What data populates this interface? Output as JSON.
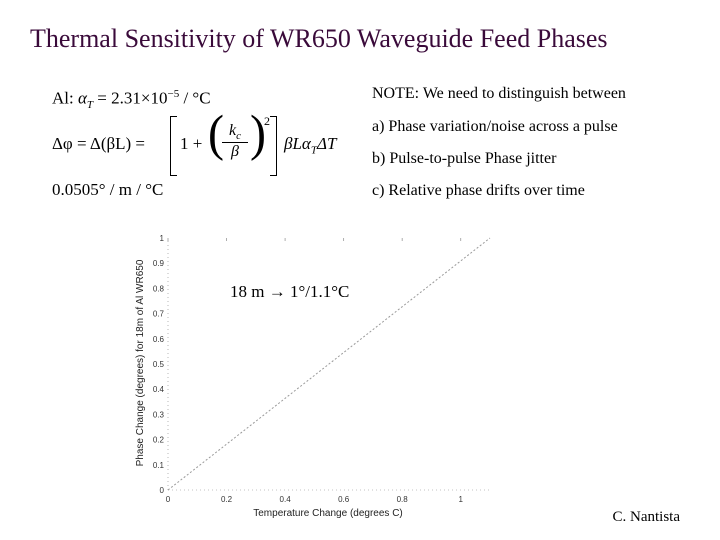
{
  "slide": {
    "title": "Thermal Sensitivity of WR650 Waveguide Feed Phases",
    "author": "C. Nantista"
  },
  "equations": {
    "alpha_label": "Al:",
    "alpha_value": "2.31×10",
    "alpha_exp": "−5",
    "alpha_unit": " / °C",
    "delta_phi_lhs": "Δφ = Δ(βL) =",
    "one_plus": "1 +",
    "kc": "k",
    "kc_sub": "c",
    "beta": "β",
    "square": "2",
    "tail": "βLα",
    "tail_sub": "T",
    "tail_end": "ΔT",
    "result": "0.0505° / m / °C"
  },
  "note": {
    "heading": "NOTE:  We need to distinguish between",
    "items": [
      "a)   Phase variation/noise across a pulse",
      "b)   Pulse-to-pulse Phase jitter",
      "c)   Relative phase drifts over time"
    ]
  },
  "annotation": "18 m → 1°/1.1°C",
  "chart_data": {
    "type": "line",
    "xlabel": "Temperature Change (degrees C)",
    "ylabel": "Phase Change (degrees) for 18m of Al WR650",
    "xlim": [
      0,
      1.1
    ],
    "ylim": [
      0,
      1
    ],
    "x_ticks": [
      "0",
      "0.2",
      "0.4",
      "0.6",
      "0.8",
      "1"
    ],
    "y_ticks": [
      "0",
      "0.1",
      "0.2",
      "0.3",
      "0.4",
      "0.5",
      "0.6",
      "0.7",
      "0.8",
      "0.9",
      "1"
    ],
    "series": [
      {
        "x": [
          0,
          1.1
        ],
        "y": [
          0,
          1.0
        ]
      }
    ],
    "line_color": "#9a9a9a"
  }
}
